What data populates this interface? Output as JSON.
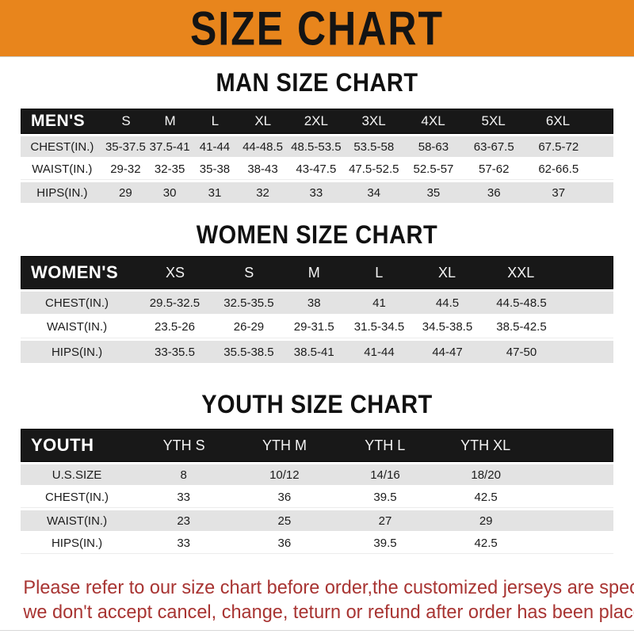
{
  "banner": {
    "title": "SIZE CHART"
  },
  "palette": {
    "banner_bg": "#e8851c",
    "header_bar_bg": "#181818",
    "row_alt_bg": "#e3e3e3",
    "footer_text_color": "#a83432"
  },
  "sections": [
    {
      "id": "men",
      "heading": "MAN SIZE CHART",
      "table": {
        "corner_label": "MEN'S",
        "columns": [
          "S",
          "M",
          "L",
          "XL",
          "2XL",
          "3XL",
          "4XL",
          "5XL",
          "6XL"
        ],
        "rows": [
          {
            "label": "CHEST(IN.)",
            "values": [
              "35-37.5",
              "37.5-41",
              "41-44",
              "44-48.5",
              "48.5-53.5",
              "53.5-58",
              "58-63",
              "63-67.5",
              "67.5-72"
            ]
          },
          {
            "label": "WAIST(IN.)",
            "values": [
              "29-32",
              "32-35",
              "35-38",
              "38-43",
              "43-47.5",
              "47.5-52.5",
              "52.5-57",
              "57-62",
              "62-66.5"
            ]
          },
          {
            "label": "HIPS(IN.)",
            "values": [
              "29",
              "30",
              "31",
              "32",
              "33",
              "34",
              "35",
              "36",
              "37"
            ]
          }
        ]
      }
    },
    {
      "id": "women",
      "heading": "WOMEN SIZE CHART",
      "table": {
        "corner_label": "WOMEN'S",
        "columns": [
          "XS",
          "S",
          "M",
          "L",
          "XL",
          "XXL"
        ],
        "rows": [
          {
            "label": "CHEST(IN.)",
            "values": [
              "29.5-32.5",
              "32.5-35.5",
              "38",
              "41",
              "44.5",
              "44.5-48.5"
            ]
          },
          {
            "label": "WAIST(IN.)",
            "values": [
              "23.5-26",
              "26-29",
              "29-31.5",
              "31.5-34.5",
              "34.5-38.5",
              "38.5-42.5"
            ]
          },
          {
            "label": "HIPS(IN.)",
            "values": [
              "33-35.5",
              "35.5-38.5",
              "38.5-41",
              "41-44",
              "44-47",
              "47-50"
            ]
          }
        ]
      }
    },
    {
      "id": "youth",
      "heading": "YOUTH SIZE CHART",
      "table": {
        "corner_label": "YOUTH",
        "columns": [
          "YTH S",
          "YTH M",
          "YTH L",
          "YTH XL"
        ],
        "rows": [
          {
            "label": "U.S.SIZE",
            "values": [
              "8",
              "10/12",
              "14/16",
              "18/20"
            ]
          },
          {
            "label": "CHEST(IN.)",
            "values": [
              "33",
              "36",
              "39.5",
              "42.5"
            ]
          },
          {
            "label": "WAIST(IN.)",
            "values": [
              "23",
              "25",
              "27",
              "29"
            ]
          },
          {
            "label": "HIPS(IN.)",
            "values": [
              "33",
              "36",
              "39.5",
              "42.5"
            ]
          }
        ]
      }
    }
  ],
  "footer": {
    "line1": "Please refer to our size chart before order,the customized jerseys are special products,",
    "line2": "we don't accept cancel, change, teturn or refund after order has been placed!"
  }
}
